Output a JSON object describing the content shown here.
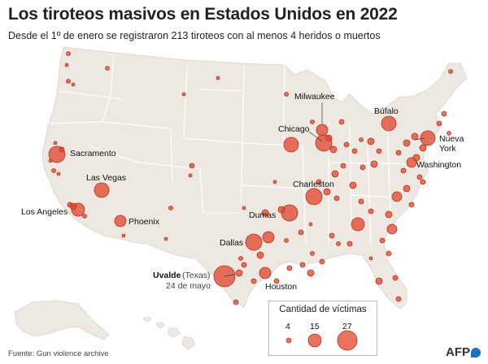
{
  "header": {
    "title": "Los tiroteos masivos en Estados Unidos en 2022",
    "subtitle": "Desde el 1º de enero se registraron 213 tiroteos con al menos 4 heridos o muertos"
  },
  "colors": {
    "land": "#ede8e1",
    "state_border": "#ffffff",
    "dot": "#e0442c",
    "dot_outline": "#b8321c",
    "dot_highlight": "#f18a75"
  },
  "labels": {
    "sacramento": "Sacramento",
    "las_vegas": "Las Vegas",
    "los_angeles": "Los Angeles",
    "phoenix": "Phoenix",
    "dallas": "Dallas",
    "dumas": "Dumas",
    "houston": "Houston",
    "uvalde": "Uvalde",
    "uvalde_state": "(Texas)",
    "uvalde_date": "24 de mayo",
    "milwaukee": "Milwaukee",
    "chicago": "Chicago",
    "charleston": "Charleston",
    "bufalo": "Búfalo",
    "nueva_york_1": "Nueva",
    "nueva_york_2": "York",
    "washington": "Washington"
  },
  "legend": {
    "title": "Cantidad de víctimas",
    "items": [
      {
        "value": 4,
        "label": "4"
      },
      {
        "value": 15,
        "label": "15"
      },
      {
        "value": 27,
        "label": "27"
      }
    ]
  },
  "source": "Fuente: Gun violence archive",
  "logo": "AFP",
  "map_data": {
    "victim_scale": "circle area proportional to number of victims",
    "highlighted_events": [
      {
        "place": "Uvalde",
        "state": "Texas",
        "date": "24 de mayo",
        "victims": 22
      },
      {
        "place": "Dallas",
        "victims": 13
      },
      {
        "place": "Chicago",
        "victims": 12
      },
      {
        "place": "Las Vegas",
        "victims": 9
      },
      {
        "place": "Charleston",
        "victims": 12
      },
      {
        "place": "Dumas",
        "victims": 11
      },
      {
        "place": "Sacramento",
        "victims": 10
      },
      {
        "place": "Búfalo",
        "victims": 13
      },
      {
        "place": "Milwaukee",
        "victims": 9
      },
      {
        "place": "Phoenix",
        "victims": 8
      },
      {
        "place": "Los Angeles",
        "victims": 7
      },
      {
        "place": "Houston",
        "victims": 7
      },
      {
        "place": "Nueva York",
        "victims": 10
      },
      {
        "place": "Washington",
        "victims": 6
      }
    ]
  }
}
